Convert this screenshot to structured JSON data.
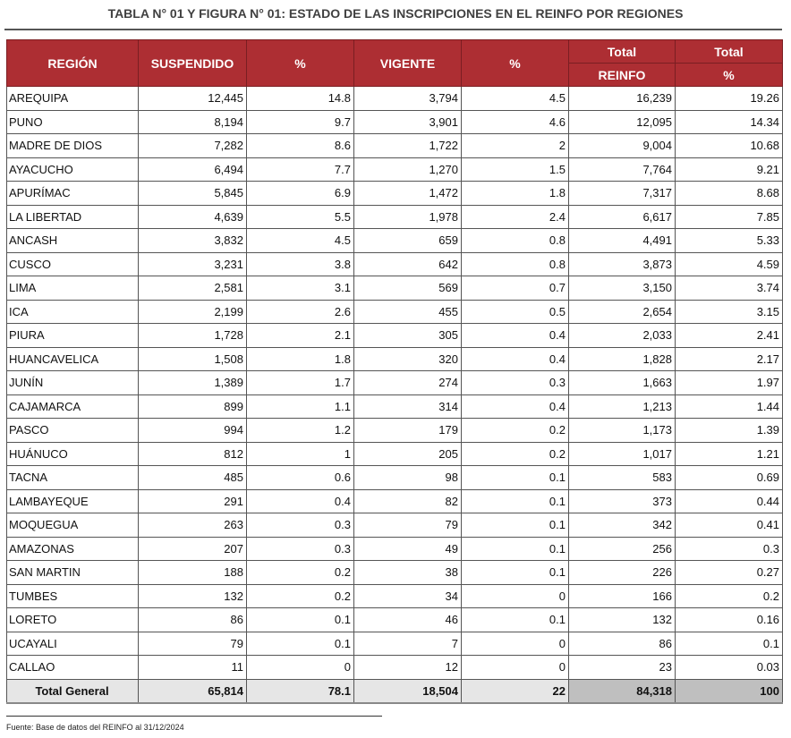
{
  "title": "TABLA N° 01 Y FIGURA N° 01: ESTADO DE LAS INSCRIPCIONES EN EL REINFO POR REGIONES",
  "headers": {
    "region": "REGIÓN",
    "suspendido": "SUSPENDIDO",
    "pct1": "%",
    "vigente": "VIGENTE",
    "pct2": "%",
    "total_top": "Total",
    "total_reinfo": "REINFO",
    "total_pct_top": "Total",
    "total_pct": "%"
  },
  "rows": [
    [
      "AREQUIPA",
      "12,445",
      "14.8",
      "3,794",
      "4.5",
      "16,239",
      "19.26"
    ],
    [
      "PUNO",
      "8,194",
      "9.7",
      "3,901",
      "4.6",
      "12,095",
      "14.34"
    ],
    [
      "MADRE DE DIOS",
      "7,282",
      "8.6",
      "1,722",
      "2",
      "9,004",
      "10.68"
    ],
    [
      "AYACUCHO",
      "6,494",
      "7.7",
      "1,270",
      "1.5",
      "7,764",
      "9.21"
    ],
    [
      "APURÍMAC",
      "5,845",
      "6.9",
      "1,472",
      "1.8",
      "7,317",
      "8.68"
    ],
    [
      "LA LIBERTAD",
      "4,639",
      "5.5",
      "1,978",
      "2.4",
      "6,617",
      "7.85"
    ],
    [
      "ANCASH",
      "3,832",
      "4.5",
      "659",
      "0.8",
      "4,491",
      "5.33"
    ],
    [
      "CUSCO",
      "3,231",
      "3.8",
      "642",
      "0.8",
      "3,873",
      "4.59"
    ],
    [
      "LIMA",
      "2,581",
      "3.1",
      "569",
      "0.7",
      "3,150",
      "3.74"
    ],
    [
      "ICA",
      "2,199",
      "2.6",
      "455",
      "0.5",
      "2,654",
      "3.15"
    ],
    [
      "PIURA",
      "1,728",
      "2.1",
      "305",
      "0.4",
      "2,033",
      "2.41"
    ],
    [
      "HUANCAVELICA",
      "1,508",
      "1.8",
      "320",
      "0.4",
      "1,828",
      "2.17"
    ],
    [
      "JUNÍN",
      "1,389",
      "1.7",
      "274",
      "0.3",
      "1,663",
      "1.97"
    ],
    [
      "CAJAMARCA",
      "899",
      "1.1",
      "314",
      "0.4",
      "1,213",
      "1.44"
    ],
    [
      "PASCO",
      "994",
      "1.2",
      "179",
      "0.2",
      "1,173",
      "1.39"
    ],
    [
      "HUÁNUCO",
      "812",
      "1",
      "205",
      "0.2",
      "1,017",
      "1.21"
    ],
    [
      "TACNA",
      "485",
      "0.6",
      "98",
      "0.1",
      "583",
      "0.69"
    ],
    [
      "LAMBAYEQUE",
      "291",
      "0.4",
      "82",
      "0.1",
      "373",
      "0.44"
    ],
    [
      "MOQUEGUA",
      "263",
      "0.3",
      "79",
      "0.1",
      "342",
      "0.41"
    ],
    [
      "AMAZONAS",
      "207",
      "0.3",
      "49",
      "0.1",
      "256",
      "0.3"
    ],
    [
      "SAN MARTIN",
      "188",
      "0.2",
      "38",
      "0.1",
      "226",
      "0.27"
    ],
    [
      "TUMBES",
      "132",
      "0.2",
      "34",
      "0",
      "166",
      "0.2"
    ],
    [
      "LORETO",
      "86",
      "0.1",
      "46",
      "0.1",
      "132",
      "0.16"
    ],
    [
      "UCAYALI",
      "79",
      "0.1",
      "7",
      "0",
      "86",
      "0.1"
    ],
    [
      "CALLAO",
      "11",
      "0",
      "12",
      "0",
      "23",
      "0.03"
    ]
  ],
  "total": [
    "Total General",
    "65,814",
    "78.1",
    "18,504",
    "22",
    "84,318",
    "100"
  ],
  "source": "Fuente: Base de datos del REINFO al 31/12/2024"
}
